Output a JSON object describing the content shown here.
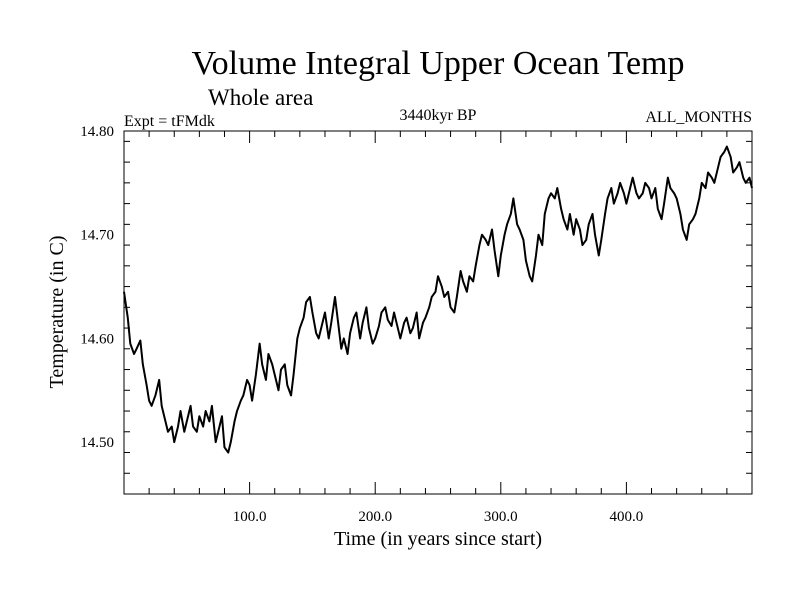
{
  "chart_data": {
    "type": "line",
    "title": "Volume Integral Upper Ocean Temp",
    "subtitle": "Whole area",
    "experiment_label": "Expt = tFMdk",
    "center_label": "3440kyr BP",
    "right_label": "ALL_MONTHS",
    "xlabel": "Time (in years since start)",
    "ylabel": "Temperature (in C)",
    "xlim": [
      0,
      500
    ],
    "ylim": [
      14.45,
      14.8
    ],
    "x_ticks": [
      {
        "value": 100,
        "label": "100.0"
      },
      {
        "value": 200,
        "label": "200.0"
      },
      {
        "value": 300,
        "label": "300.0"
      },
      {
        "value": 400,
        "label": "400.0"
      }
    ],
    "y_ticks": [
      {
        "value": 14.5,
        "label": "14.50"
      },
      {
        "value": 14.6,
        "label": "14.60"
      },
      {
        "value": 14.7,
        "label": "14.70"
      },
      {
        "value": 14.8,
        "label": "14.80"
      }
    ],
    "grid": false,
    "series": [
      {
        "name": "Volume Integral Upper Ocean Temp",
        "color": "#000000",
        "x": [
          0,
          3,
          5,
          8,
          10,
          13,
          15,
          18,
          20,
          22,
          25,
          28,
          30,
          33,
          35,
          38,
          40,
          43,
          45,
          48,
          50,
          53,
          55,
          58,
          60,
          63,
          65,
          68,
          70,
          73,
          75,
          78,
          80,
          83,
          85,
          88,
          90,
          93,
          95,
          98,
          100,
          102,
          105,
          108,
          110,
          113,
          115,
          118,
          120,
          123,
          125,
          128,
          130,
          133,
          135,
          138,
          140,
          143,
          145,
          148,
          150,
          153,
          155,
          158,
          160,
          163,
          165,
          168,
          170,
          173,
          175,
          178,
          180,
          183,
          185,
          188,
          190,
          193,
          195,
          198,
          200,
          203,
          205,
          208,
          210,
          213,
          215,
          218,
          220,
          223,
          225,
          228,
          230,
          233,
          235,
          238,
          240,
          243,
          245,
          248,
          250,
          253,
          255,
          258,
          260,
          263,
          265,
          268,
          270,
          273,
          275,
          278,
          280,
          283,
          285,
          288,
          290,
          293,
          295,
          298,
          300,
          303,
          305,
          308,
          310,
          313,
          315,
          318,
          320,
          323,
          325,
          328,
          330,
          333,
          335,
          338,
          340,
          343,
          345,
          348,
          350,
          353,
          355,
          358,
          360,
          363,
          365,
          368,
          370,
          373,
          375,
          378,
          380,
          383,
          385,
          388,
          390,
          393,
          395,
          398,
          400,
          403,
          405,
          408,
          410,
          413,
          415,
          418,
          420,
          423,
          425,
          428,
          430,
          433,
          435,
          438,
          440,
          443,
          445,
          448,
          450,
          453,
          455,
          458,
          460,
          463,
          465,
          468,
          470,
          473,
          475,
          478,
          480,
          483,
          485,
          488,
          490,
          493,
          495,
          498,
          500
        ],
        "y": [
          14.645,
          14.62,
          14.595,
          14.585,
          14.59,
          14.598,
          14.575,
          14.555,
          14.54,
          14.535,
          14.545,
          14.56,
          14.535,
          14.52,
          14.51,
          14.515,
          14.5,
          14.515,
          14.53,
          14.51,
          14.52,
          14.535,
          14.515,
          14.51,
          14.525,
          14.515,
          14.53,
          14.52,
          14.535,
          14.5,
          14.51,
          14.525,
          14.495,
          14.49,
          14.5,
          14.52,
          14.53,
          14.54,
          14.545,
          14.56,
          14.555,
          14.54,
          14.565,
          14.595,
          14.575,
          14.56,
          14.585,
          14.575,
          14.565,
          14.55,
          14.57,
          14.575,
          14.555,
          14.545,
          14.565,
          14.6,
          14.61,
          14.62,
          14.635,
          14.64,
          14.625,
          14.605,
          14.6,
          14.615,
          14.625,
          14.6,
          14.615,
          14.64,
          14.62,
          14.59,
          14.6,
          14.585,
          14.605,
          14.62,
          14.625,
          14.6,
          14.615,
          14.63,
          14.61,
          14.595,
          14.6,
          14.612,
          14.625,
          14.63,
          14.618,
          14.612,
          14.625,
          14.61,
          14.6,
          14.615,
          14.62,
          14.605,
          14.61,
          14.625,
          14.6,
          14.615,
          14.62,
          14.63,
          14.64,
          14.645,
          14.66,
          14.65,
          14.64,
          14.645,
          14.63,
          14.625,
          14.64,
          14.665,
          14.655,
          14.645,
          14.66,
          14.655,
          14.67,
          14.69,
          14.7,
          14.695,
          14.69,
          14.705,
          14.685,
          14.66,
          14.68,
          14.7,
          14.71,
          14.72,
          14.735,
          14.71,
          14.705,
          14.695,
          14.675,
          14.66,
          14.655,
          14.68,
          14.7,
          14.69,
          14.72,
          14.735,
          14.74,
          14.735,
          14.745,
          14.725,
          14.715,
          14.705,
          14.72,
          14.7,
          14.715,
          14.705,
          14.69,
          14.695,
          14.71,
          14.72,
          14.7,
          14.68,
          14.695,
          14.72,
          14.735,
          14.745,
          14.73,
          14.74,
          14.75,
          14.74,
          14.73,
          14.745,
          14.755,
          14.74,
          14.735,
          14.74,
          14.75,
          14.745,
          14.735,
          14.745,
          14.725,
          14.715,
          14.73,
          14.755,
          14.745,
          14.74,
          14.735,
          14.72,
          14.705,
          14.695,
          14.71,
          14.715,
          14.72,
          14.735,
          14.75,
          14.745,
          14.76,
          14.755,
          14.75,
          14.765,
          14.775,
          14.78,
          14.785,
          14.775,
          14.76,
          14.765,
          14.77,
          14.755,
          14.75,
          14.755,
          14.745
        ]
      }
    ]
  }
}
